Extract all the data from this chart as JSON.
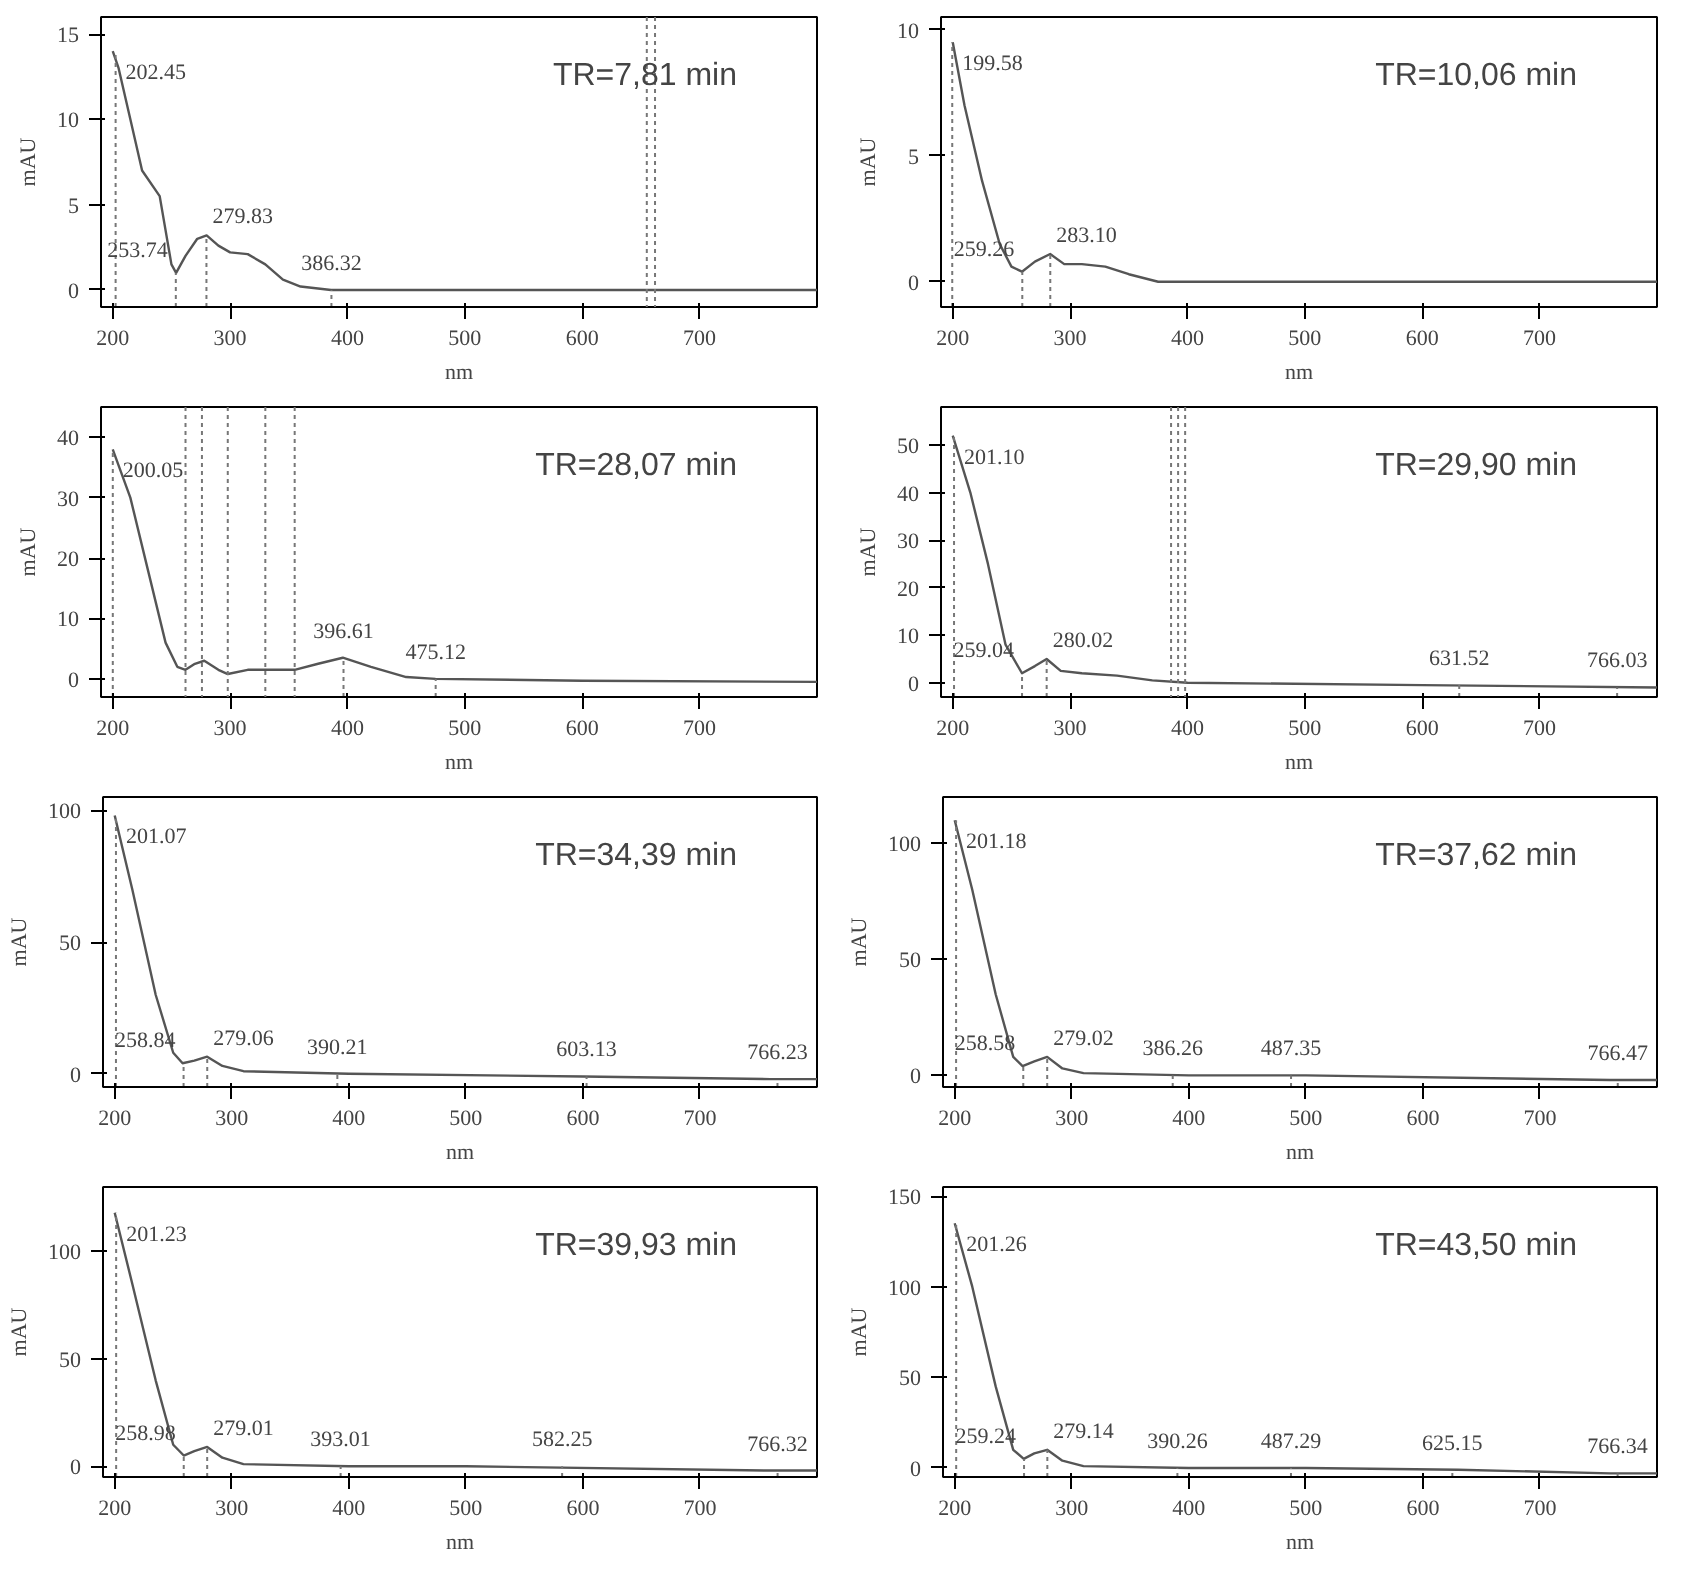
{
  "chart_data": [
    {
      "type": "line",
      "xlabel": "nm",
      "ylabel": "mAU",
      "xlim": [
        190,
        800
      ],
      "ylim": [
        -1,
        16
      ],
      "xticks": [
        200,
        300,
        400,
        500,
        600,
        700
      ],
      "yticks": [
        0,
        5,
        10,
        15
      ],
      "series": [
        {
          "color": "#555555",
          "x": [
            200,
            205,
            215,
            225,
            240,
            250,
            254,
            262,
            272,
            280,
            290,
            300,
            315,
            330,
            345,
            360,
            386,
            500,
            650,
            800
          ],
          "values": [
            14,
            13,
            10,
            7,
            5.5,
            1.5,
            1,
            2,
            3,
            3.2,
            2.6,
            2.2,
            2.1,
            1.5,
            0.6,
            0.2,
            0,
            0,
            0,
            0
          ]
        }
      ],
      "annotations": [
        "TR=7,81 min",
        {
          "text": "202.45",
          "x": 202.45,
          "y": 14
        },
        {
          "text": "253.74",
          "x": 253.74,
          "y": 1
        },
        {
          "text": "279.83",
          "x": 279.83,
          "y": 3.2
        },
        {
          "text": "386.32",
          "x": 386.32,
          "y": 0
        }
      ],
      "ref_lines": [
        {
          "axis": "x",
          "value": 655,
          "label": null
        },
        {
          "axis": "x",
          "value": 662,
          "label": null
        }
      ]
    },
    {
      "type": "line",
      "xlabel": "nm",
      "ylabel": "mAU",
      "xlim": [
        190,
        800
      ],
      "ylim": [
        -1,
        10.5
      ],
      "xticks": [
        200,
        300,
        400,
        500,
        600,
        700
      ],
      "yticks": [
        0,
        5,
        10
      ],
      "series": [
        {
          "color": "#555555",
          "x": [
            200,
            210,
            225,
            240,
            250,
            259,
            270,
            283,
            295,
            310,
            330,
            350,
            375,
            500,
            800
          ],
          "values": [
            9.5,
            7,
            4,
            1.5,
            0.6,
            0.4,
            0.8,
            1.1,
            0.7,
            0.7,
            0.6,
            0.3,
            0,
            0,
            0
          ]
        }
      ],
      "annotations": [
        "TR=10,06 min",
        {
          "text": "199.58",
          "x": 199.58,
          "y": 9.5
        },
        {
          "text": "259.26",
          "x": 259.26,
          "y": 0.4
        },
        {
          "text": "283.10",
          "x": 283.1,
          "y": 1.1
        }
      ]
    },
    {
      "type": "line",
      "xlabel": "nm",
      "ylabel": "mAU",
      "xlim": [
        190,
        800
      ],
      "ylim": [
        -3,
        45
      ],
      "xticks": [
        200,
        300,
        400,
        500,
        600,
        700
      ],
      "yticks": [
        0,
        10,
        20,
        30,
        40
      ],
      "series": [
        {
          "color": "#555555",
          "x": [
            200,
            215,
            230,
            245,
            255,
            262,
            270,
            278,
            290,
            298,
            315,
            340,
            355,
            375,
            396,
            420,
            450,
            475,
            600,
            800
          ],
          "values": [
            38,
            30,
            18,
            6,
            2,
            1.5,
            2.5,
            3,
            1.5,
            0.8,
            1.5,
            1.5,
            1.5,
            2.5,
            3.5,
            2,
            0.3,
            0,
            -0.3,
            -0.5
          ]
        }
      ],
      "annotations": [
        "TR=28,07 min",
        {
          "text": "200.05",
          "x": 200.05,
          "y": 38
        },
        {
          "text": "396.61",
          "x": 396.61,
          "y": 3.5
        },
        {
          "text": "475.12",
          "x": 475.12,
          "y": 0
        }
      ],
      "ref_lines": [
        {
          "axis": "x",
          "value": 262,
          "label": null
        },
        {
          "axis": "x",
          "value": 276,
          "label": null
        },
        {
          "axis": "x",
          "value": 298,
          "label": null
        },
        {
          "axis": "x",
          "value": 330,
          "label": null
        },
        {
          "axis": "x",
          "value": 355,
          "label": null
        }
      ]
    },
    {
      "type": "line",
      "xlabel": "nm",
      "ylabel": "mAU",
      "xlim": [
        190,
        800
      ],
      "ylim": [
        -3,
        58
      ],
      "xticks": [
        200,
        300,
        400,
        500,
        600,
        700
      ],
      "yticks": [
        0,
        10,
        20,
        30,
        40,
        50
      ],
      "series": [
        {
          "color": "#555555",
          "x": [
            200,
            215,
            230,
            245,
            259,
            270,
            280,
            292,
            310,
            340,
            370,
            400,
            600,
            800
          ],
          "values": [
            52,
            40,
            25,
            8,
            2,
            3.5,
            5,
            2.5,
            2,
            1.5,
            0.5,
            0,
            -0.5,
            -1
          ]
        }
      ],
      "annotations": [
        "TR=29,90 min",
        {
          "text": "201.10",
          "x": 201.1,
          "y": 52
        },
        {
          "text": "259.04",
          "x": 259.04,
          "y": 2
        },
        {
          "text": "280.02",
          "x": 280.02,
          "y": 5
        },
        {
          "text": "631.52",
          "x": 631.52,
          "y": -0.5
        },
        {
          "text": "766.03",
          "x": 766.03,
          "y": -1
        }
      ],
      "ref_lines": [
        {
          "axis": "x",
          "value": 386,
          "label": null
        },
        {
          "axis": "x",
          "value": 392,
          "label": null
        },
        {
          "axis": "x",
          "value": 398,
          "label": null
        }
      ]
    },
    {
      "type": "line",
      "xlabel": "nm",
      "ylabel": "mAU",
      "xlim": [
        190,
        800
      ],
      "ylim": [
        -5,
        105
      ],
      "xticks": [
        200,
        300,
        400,
        500,
        600,
        700
      ],
      "yticks": [
        0,
        50,
        100
      ],
      "series": [
        {
          "color": "#555555",
          "x": [
            200,
            215,
            235,
            250,
            258,
            268,
            279,
            292,
            310,
            400,
            600,
            760,
            800
          ],
          "values": [
            98,
            70,
            30,
            8,
            4,
            5,
            6.5,
            3,
            1,
            0,
            -1,
            -2,
            -2
          ]
        }
      ],
      "annotations": [
        "TR=34,39 min",
        {
          "text": "201.07",
          "x": 201.07,
          "y": 98
        },
        {
          "text": "258.84",
          "x": 258.84,
          "y": 4
        },
        {
          "text": "279.06",
          "x": 279.06,
          "y": 6.5
        },
        {
          "text": "390.21",
          "x": 390.21,
          "y": 0
        },
        {
          "text": "603.13",
          "x": 603.13,
          "y": -1
        },
        {
          "text": "766.23",
          "x": 766.23,
          "y": -2
        }
      ]
    },
    {
      "type": "line",
      "xlabel": "nm",
      "ylabel": "mAU",
      "xlim": [
        190,
        800
      ],
      "ylim": [
        -5,
        120
      ],
      "xticks": [
        200,
        300,
        400,
        500,
        600,
        700
      ],
      "yticks": [
        0,
        50,
        100
      ],
      "series": [
        {
          "color": "#555555",
          "x": [
            200,
            215,
            235,
            250,
            258,
            268,
            279,
            292,
            310,
            400,
            500,
            760,
            800
          ],
          "values": [
            110,
            80,
            35,
            8,
            4,
            6,
            8,
            3,
            1,
            0,
            0,
            -2,
            -2
          ]
        }
      ],
      "annotations": [
        "TR=37,62 min",
        {
          "text": "201.18",
          "x": 201.18,
          "y": 110
        },
        {
          "text": "258.58",
          "x": 258.58,
          "y": 4
        },
        {
          "text": "279.02",
          "x": 279.02,
          "y": 8
        },
        {
          "text": "386.26",
          "x": 386.26,
          "y": 0
        },
        {
          "text": "487.35",
          "x": 487.35,
          "y": 0
        },
        {
          "text": "766.47",
          "x": 766.47,
          "y": -2
        }
      ]
    },
    {
      "type": "line",
      "xlabel": "nm",
      "ylabel": "mAU",
      "xlim": [
        190,
        800
      ],
      "ylim": [
        -5,
        130
      ],
      "xticks": [
        200,
        300,
        400,
        500,
        600,
        700
      ],
      "yticks": [
        0,
        50,
        100
      ],
      "series": [
        {
          "color": "#555555",
          "x": [
            200,
            215,
            235,
            250,
            259,
            268,
            279,
            292,
            310,
            400,
            500,
            760,
            800
          ],
          "values": [
            118,
            85,
            40,
            10,
            5,
            7,
            9,
            4,
            1,
            0,
            0,
            -2,
            -2
          ]
        }
      ],
      "annotations": [
        "TR=39,93 min",
        {
          "text": "201.23",
          "x": 201.23,
          "y": 118
        },
        {
          "text": "258.98",
          "x": 258.98,
          "y": 5
        },
        {
          "text": "279.01",
          "x": 279.01,
          "y": 9
        },
        {
          "text": "393.01",
          "x": 393.01,
          "y": 0
        },
        {
          "text": "582.25",
          "x": 582.25,
          "y": 0
        },
        {
          "text": "766.32",
          "x": 766.32,
          "y": -2
        }
      ]
    },
    {
      "type": "line",
      "xlabel": "nm",
      "ylabel": "mAU",
      "xlim": [
        190,
        800
      ],
      "ylim": [
        -5,
        155
      ],
      "xticks": [
        200,
        300,
        400,
        500,
        600,
        700
      ],
      "yticks": [
        0,
        50,
        100,
        150
      ],
      "series": [
        {
          "color": "#555555",
          "x": [
            200,
            215,
            235,
            250,
            259,
            268,
            279,
            292,
            310,
            400,
            500,
            630,
            760,
            800
          ],
          "values": [
            135,
            100,
            45,
            10,
            5,
            8,
            10,
            4,
            1,
            0,
            0,
            -1,
            -3,
            -3
          ]
        }
      ],
      "annotations": [
        "TR=43,50 min",
        {
          "text": "201.26",
          "x": 201.26,
          "y": 135
        },
        {
          "text": "259.24",
          "x": 259.24,
          "y": 5
        },
        {
          "text": "279.14",
          "x": 279.14,
          "y": 10
        },
        {
          "text": "390.26",
          "x": 390.26,
          "y": 0
        },
        {
          "text": "487.29",
          "x": 487.29,
          "y": 0
        },
        {
          "text": "625.15",
          "x": 625.15,
          "y": -1
        },
        {
          "text": "766.34",
          "x": 766.34,
          "y": -3
        }
      ]
    }
  ]
}
